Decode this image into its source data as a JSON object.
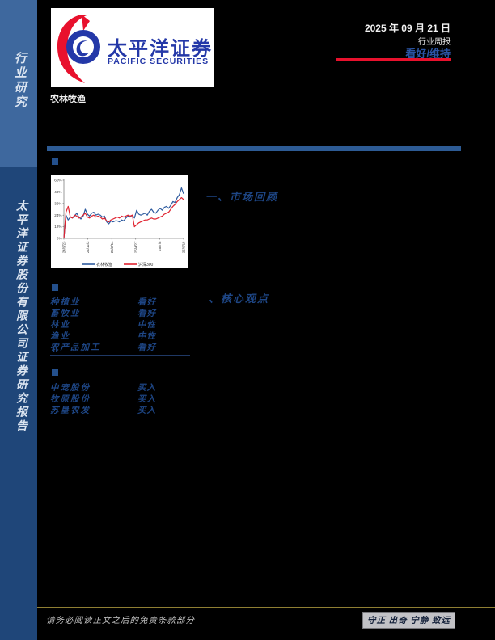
{
  "header": {
    "date": "2025 年 09 月 21 日",
    "report_type": "行业周报",
    "rating": "看好/维持",
    "industry": "农林牧渔"
  },
  "brand": {
    "name_cn": "太平洋证券",
    "name_en": "PACIFIC SECURITIES"
  },
  "sidebar": {
    "top_label": "行业研究",
    "bottom_label": "太平洋证券股份有限公司证券研究报告"
  },
  "sections": {
    "market_review_title": "一、市场回顾",
    "core_views_title": "、核心观点",
    "roman_marker": "Ⅱ"
  },
  "industry_ratings": [
    {
      "name": "种植业",
      "rating": "看好"
    },
    {
      "name": "畜牧业",
      "rating": "看好"
    },
    {
      "name": "林业",
      "rating": "中性"
    },
    {
      "name": "渔业",
      "rating": "中性"
    },
    {
      "name": "农产品加工",
      "rating": "看好"
    }
  ],
  "stock_ratings": [
    {
      "name": "中宠股份",
      "rating": "买入"
    },
    {
      "name": "牧原股份",
      "rating": "买入"
    },
    {
      "name": "苏垦农发",
      "rating": "买入"
    }
  ],
  "footer": {
    "disclaimer": "请务必阅读正文之后的免责条款部分",
    "motto": "守正 出奇 宁静 致远"
  },
  "colors": {
    "sidebar_top": "#3e689e",
    "sidebar_bottom": "#1f4679",
    "accent_blue": "#2d5b94",
    "handwriting_blue": "#1e4685",
    "brand_blue": "#2438a8",
    "brand_red": "#e8112d",
    "rating_underline_red": "#e8112d",
    "footer_gold": "#8f7f33"
  },
  "chart_data": {
    "type": "line",
    "title": "",
    "xlabel": "",
    "ylabel": "",
    "ylim": [
      0,
      60
    ],
    "yticks": [
      "0%",
      "12%",
      "24%",
      "36%",
      "48%",
      "60%"
    ],
    "xticks": [
      "24/9/23",
      "24/12/3",
      "25/2/14",
      "25/4/27",
      "25/7/8",
      "25/9/18"
    ],
    "grid": false,
    "legend_position": "bottom",
    "series": [
      {
        "name": "农林牧渔",
        "color": "#2e5b9f",
        "values": [
          0,
          24,
          19,
          22,
          21,
          23,
          26,
          22,
          20,
          23,
          30,
          25,
          23,
          26,
          27,
          24,
          25,
          24,
          22,
          23,
          17,
          15,
          18,
          17,
          18,
          18,
          17,
          19,
          18,
          21,
          23,
          22,
          24,
          21,
          29,
          25,
          24,
          25,
          26,
          24,
          28,
          30,
          27,
          26,
          29,
          31,
          29,
          32,
          33,
          31,
          34,
          38,
          37,
          42,
          45,
          52,
          46
        ]
      },
      {
        "name": "沪深300",
        "color": "#e02330",
        "values": [
          0,
          27,
          33,
          22,
          21,
          24,
          23,
          21,
          22,
          24,
          26,
          22,
          21,
          23,
          24,
          22,
          23,
          22,
          20,
          21,
          18,
          17,
          19,
          20,
          21,
          22,
          21,
          23,
          22,
          23,
          24,
          23,
          24,
          12,
          14,
          16,
          17,
          18,
          19,
          19,
          20,
          21,
          20,
          20,
          21,
          22,
          23,
          25,
          26,
          27,
          30,
          33,
          35,
          38,
          40,
          42,
          40
        ]
      }
    ]
  }
}
